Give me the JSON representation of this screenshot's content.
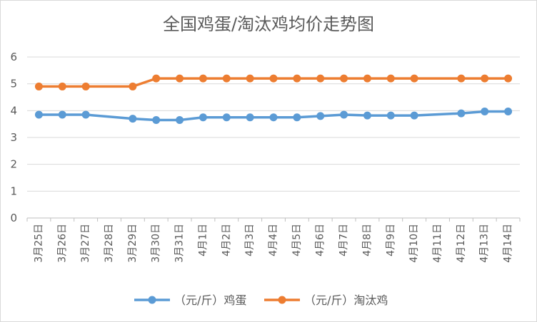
{
  "chart_data": {
    "type": "line",
    "title": "全国鸡蛋/淘汰鸡均价走势图",
    "categories": [
      "3月25日",
      "3月26日",
      "3月27日",
      "3月28日",
      "3月29日",
      "3月30日",
      "3月31日",
      "4月1日",
      "4月2日",
      "4月3日",
      "4月4日",
      "4月5日",
      "4月6日",
      "4月7日",
      "4月8日",
      "4月9日",
      "4月10日",
      "4月11日",
      "4月12日",
      "4月13日",
      "4月14日"
    ],
    "series": [
      {
        "name": "（元/斤）鸡蛋",
        "color": "#5b9bd5",
        "values": [
          3.85,
          3.85,
          3.85,
          null,
          3.7,
          3.65,
          3.65,
          3.75,
          3.75,
          3.75,
          3.75,
          3.75,
          3.8,
          3.85,
          3.82,
          3.82,
          3.82,
          null,
          3.9,
          3.97,
          3.97
        ]
      },
      {
        "name": "（元/斤）淘汰鸡",
        "color": "#ed7d31",
        "values": [
          4.9,
          4.9,
          4.9,
          null,
          4.9,
          5.2,
          5.2,
          5.2,
          5.2,
          5.2,
          5.2,
          5.2,
          5.2,
          5.2,
          5.2,
          5.2,
          5.2,
          null,
          5.2,
          5.2,
          5.2
        ]
      }
    ],
    "ylim": [
      0,
      6
    ],
    "yticks": [
      0,
      1,
      2,
      3,
      4,
      5,
      6
    ],
    "grid": true,
    "legend": "bottom"
  }
}
